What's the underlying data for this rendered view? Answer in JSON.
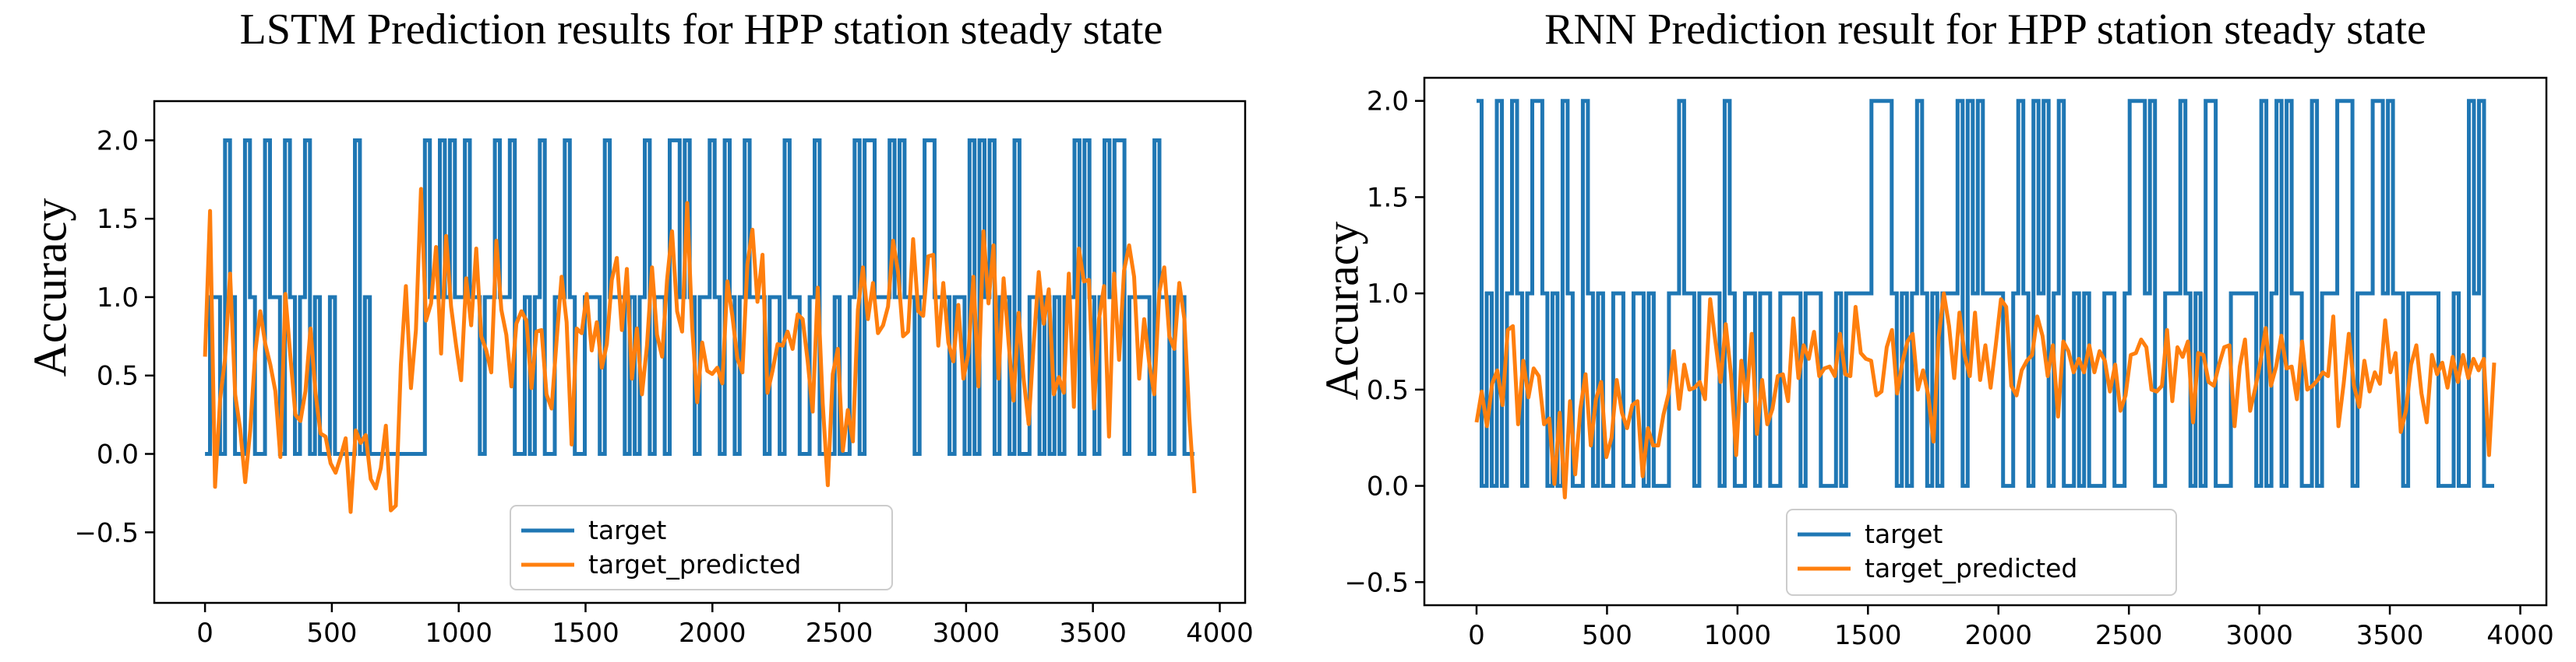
{
  "chart_data": [
    {
      "type": "line",
      "title": "LSTM Prediction results for HPP station steady state",
      "xlabel": "",
      "ylabel": "Accuracy",
      "xlim": [
        -200,
        4100
      ],
      "ylim": [
        -0.95,
        2.25
      ],
      "xticks": [
        0,
        500,
        1000,
        1500,
        2000,
        2500,
        3000,
        3500,
        4000
      ],
      "xtick_labels": [
        "0",
        "500",
        "1000",
        "1500",
        "2000",
        "2500",
        "3000",
        "3500",
        "4000"
      ],
      "yticks": [
        -0.5,
        0.0,
        0.5,
        1.0,
        1.5,
        2.0
      ],
      "ytick_labels": [
        "−0.5",
        "0.0",
        "0.5",
        "1.0",
        "1.5",
        "2.0"
      ],
      "legend": "bottom-center",
      "x_max": 3900,
      "series": [
        {
          "name": "target",
          "color": "#1f77b4",
          "values": [
            0,
            1,
            1,
            0,
            2,
            1,
            0,
            0,
            2,
            1,
            0,
            0,
            2,
            1,
            1,
            0,
            2,
            1,
            0,
            1,
            2,
            0,
            1,
            0,
            0,
            1,
            0,
            0,
            0,
            0,
            2,
            0,
            1,
            0,
            0,
            0,
            0,
            0,
            0,
            0,
            0,
            0,
            0,
            0,
            2,
            1,
            1,
            2,
            1,
            2,
            1,
            1,
            2,
            1,
            1,
            0,
            1,
            1,
            2,
            1,
            1,
            2,
            0,
            0,
            1,
            0,
            1,
            2,
            0,
            0,
            1,
            1,
            2,
            1,
            0,
            0,
            1,
            1,
            1,
            0,
            2,
            1,
            1,
            1,
            0,
            1,
            0,
            1,
            2,
            0,
            1,
            1,
            0,
            2,
            2,
            1,
            2,
            1,
            0,
            1,
            1,
            2,
            1,
            0,
            2,
            1,
            0,
            1,
            2,
            1,
            1,
            1,
            0,
            1,
            1,
            0,
            2,
            1,
            1,
            0,
            0,
            1,
            2,
            0,
            0,
            0,
            1,
            0,
            0,
            1,
            2,
            0,
            2,
            2,
            1,
            1,
            1,
            2,
            1,
            2,
            1,
            1,
            0,
            1,
            2,
            2,
            1,
            1,
            1,
            0,
            1,
            1,
            0,
            2,
            0,
            2,
            1,
            2,
            0,
            1,
            1,
            0,
            2,
            0,
            0,
            1,
            1,
            0,
            1,
            0,
            1,
            0,
            1,
            1,
            2,
            0,
            2,
            1,
            0,
            1,
            2,
            1,
            2,
            2,
            0,
            1,
            1,
            1,
            1,
            0,
            2,
            1,
            1,
            0,
            1,
            1,
            0,
            0
          ]
        },
        {
          "name": "target_predicted",
          "color": "#ff7f0e",
          "values": [
            0.62,
            1.55,
            -0.21,
            0.35,
            0.61,
            1.15,
            0.38,
            0.16,
            -0.18,
            0.15,
            0.65,
            0.91,
            0.7,
            0.57,
            0.4,
            -0.02,
            1.02,
            0.62,
            0.25,
            0.21,
            0.4,
            0.8,
            0.39,
            0.13,
            0.11,
            -0.06,
            -0.12,
            -0.02,
            0.1,
            -0.37,
            0.15,
            0.07,
            0.12,
            -0.16,
            -0.22,
            -0.09,
            0.18,
            -0.36,
            -0.33,
            0.57,
            1.07,
            0.42,
            0.79,
            1.69,
            0.85,
            0.96,
            1.32,
            0.64,
            1.39,
            0.94,
            0.69,
            0.47,
            1.12,
            0.82,
            1.31,
            0.75,
            0.66,
            0.52,
            1.36,
            0.92,
            0.76,
            0.43,
            0.83,
            0.91,
            0.85,
            0.42,
            0.78,
            0.79,
            0.38,
            0.29,
            0.72,
            1.13,
            0.84,
            0.06,
            0.8,
            0.77,
            1.02,
            0.66,
            0.84,
            0.55,
            0.7,
            1.11,
            1.25,
            0.79,
            1.18,
            0.48,
            0.8,
            0.38,
            0.69,
            1.19,
            0.76,
            0.62,
            1.11,
            1.42,
            0.91,
            0.78,
            1.6,
            0.81,
            0.33,
            0.71,
            0.53,
            0.51,
            0.55,
            0.45,
            1.1,
            0.88,
            0.61,
            0.52,
            1.21,
            1.43,
            0.97,
            1.27,
            0.39,
            0.53,
            0.7,
            0.69,
            0.78,
            0.67,
            0.89,
            0.86,
            0.59,
            0.27,
            1.06,
            0.32,
            -0.2,
            0.51,
            0.67,
            0.02,
            0.28,
            0.08,
            0.92,
            1.19,
            0.86,
            1.09,
            0.77,
            0.82,
            0.94,
            1.36,
            1.16,
            0.75,
            0.78,
            1.37,
            0.91,
            0.88,
            1.26,
            1.27,
            0.69,
            1.09,
            0.71,
            0.59,
            0.95,
            0.48,
            0.64,
            1.13,
            0.43,
            1.42,
            0.96,
            1.33,
            0.48,
            1.12,
            0.71,
            0.34,
            0.9,
            0.48,
            0.19,
            0.7,
            1.16,
            0.83,
            1.05,
            0.38,
            0.49,
            0.39,
            1.15,
            0.3,
            1.31,
            1.1,
            1.11,
            0.29,
            0.86,
            1.07,
            0.11,
            1.15,
            0.6,
            1.17,
            1.33,
            1.13,
            0.48,
            0.86,
            0.58,
            0.38,
            1.03,
            1.19,
            0.75,
            0.67,
            1.09,
            0.86,
            0.23,
            -0.25
          ]
        }
      ]
    },
    {
      "type": "line",
      "title": "RNN Prediction result for HPP station steady state",
      "xlabel": "",
      "ylabel": "Accuracy",
      "xlim": [
        -200,
        4100
      ],
      "ylim": [
        -0.62,
        2.12
      ],
      "xticks": [
        0,
        500,
        1000,
        1500,
        2000,
        2500,
        3000,
        3500,
        4000
      ],
      "xtick_labels": [
        "0",
        "500",
        "1000",
        "1500",
        "2000",
        "2500",
        "3000",
        "3500",
        "4000"
      ],
      "yticks": [
        -0.5,
        0.0,
        0.5,
        1.0,
        1.5,
        2.0
      ],
      "ytick_labels": [
        "−0.5",
        "0.0",
        "0.5",
        "1.0",
        "1.5",
        "2.0"
      ],
      "legend": "bottom-center",
      "x_max": 3900,
      "series": [
        {
          "name": "target",
          "color": "#1f77b4",
          "values": [
            2,
            0,
            1,
            0,
            2,
            0,
            1,
            2,
            1,
            0,
            1,
            2,
            2,
            1,
            0,
            1,
            0,
            2,
            1,
            0,
            0,
            2,
            1,
            0,
            1,
            0,
            0,
            1,
            1,
            0,
            0,
            1,
            1,
            0,
            1,
            0,
            0,
            0,
            1,
            1,
            2,
            1,
            1,
            0,
            1,
            1,
            1,
            1,
            0,
            2,
            1,
            0,
            0,
            1,
            1,
            0,
            1,
            1,
            0,
            0,
            1,
            1,
            1,
            1,
            0,
            1,
            1,
            1,
            0,
            0,
            0,
            1,
            0,
            1,
            1,
            1,
            1,
            1,
            2,
            2,
            2,
            2,
            1,
            0,
            1,
            0,
            1,
            2,
            1,
            0,
            1,
            0,
            1,
            1,
            1,
            2,
            0,
            2,
            1,
            2,
            1,
            1,
            1,
            1,
            0,
            0,
            1,
            2,
            1,
            0,
            2,
            1,
            2,
            0,
            1,
            2,
            0,
            0,
            1,
            0,
            1,
            0,
            0,
            0,
            1,
            1,
            0,
            0,
            1,
            2,
            2,
            2,
            1,
            2,
            0,
            0,
            1,
            1,
            1,
            2,
            1,
            0,
            1,
            0,
            2,
            2,
            0,
            0,
            0,
            1,
            1,
            1,
            1,
            1,
            0,
            2,
            0,
            1,
            2,
            0,
            2,
            1,
            1,
            0,
            0,
            2,
            0,
            1,
            1,
            1,
            2,
            2,
            2,
            0,
            1,
            1,
            1,
            2,
            2,
            1,
            2,
            1,
            1,
            0,
            1,
            1,
            1,
            1,
            1,
            1,
            0,
            0,
            0,
            1,
            0,
            0,
            2,
            1,
            2,
            0,
            0
          ]
        },
        {
          "name": "target_predicted",
          "color": "#ff7f0e",
          "values": [
            0.33,
            0.49,
            0.31,
            0.53,
            0.6,
            0.42,
            0.81,
            0.83,
            0.32,
            0.65,
            0.46,
            0.61,
            0.57,
            0.32,
            0.35,
            0.01,
            0.38,
            -0.06,
            0.44,
            0.06,
            0.4,
            0.58,
            0.21,
            0.45,
            0.54,
            0.15,
            0.25,
            0.55,
            0.38,
            0.3,
            0.42,
            0.44,
            0.05,
            0.3,
            0.21,
            0.21,
            0.37,
            0.48,
            0.7,
            0.4,
            0.63,
            0.5,
            0.51,
            0.54,
            0.45,
            0.97,
            0.75,
            0.54,
            0.84,
            0.58,
            0.16,
            0.65,
            0.44,
            0.79,
            0.27,
            0.55,
            0.32,
            0.4,
            0.57,
            0.58,
            0.44,
            0.87,
            0.56,
            0.73,
            0.66,
            0.8,
            0.57,
            0.61,
            0.62,
            0.57,
            0.79,
            0.58,
            0.57,
            0.93,
            0.69,
            0.66,
            0.65,
            0.47,
            0.49,
            0.72,
            0.81,
            0.48,
            0.64,
            0.75,
            0.79,
            0.5,
            0.6,
            0.47,
            0.23,
            0.77,
            1.0,
            0.83,
            0.56,
            0.9,
            0.68,
            0.57,
            0.9,
            0.55,
            0.73,
            0.51,
            0.73,
            0.97,
            0.93,
            0.52,
            0.47,
            0.6,
            0.65,
            0.68,
            0.88,
            0.78,
            0.57,
            0.73,
            0.36,
            0.75,
            0.7,
            0.59,
            0.66,
            0.59,
            0.73,
            0.59,
            0.7,
            0.65,
            0.49,
            0.63,
            0.39,
            0.47,
            0.68,
            0.69,
            0.76,
            0.72,
            0.5,
            0.49,
            0.52,
            0.81,
            0.44,
            0.72,
            0.67,
            0.75,
            0.33,
            0.69,
            0.68,
            0.54,
            0.52,
            0.63,
            0.72,
            0.73,
            0.31,
            0.62,
            0.76,
            0.39,
            0.51,
            0.65,
            0.82,
            0.52,
            0.62,
            0.78,
            0.61,
            0.62,
            0.45,
            0.75,
            0.5,
            0.52,
            0.55,
            0.59,
            0.57,
            0.88,
            0.31,
            0.53,
            0.79,
            0.52,
            0.41,
            0.65,
            0.49,
            0.59,
            0.53,
            0.86,
            0.59,
            0.69,
            0.28,
            0.39,
            0.63,
            0.73,
            0.48,
            0.33,
            0.68,
            0.58,
            0.64,
            0.51,
            0.67,
            0.54,
            0.68,
            0.56,
            0.66,
            0.6,
            0.66,
            0.16,
            0.64
          ]
        }
      ]
    }
  ]
}
